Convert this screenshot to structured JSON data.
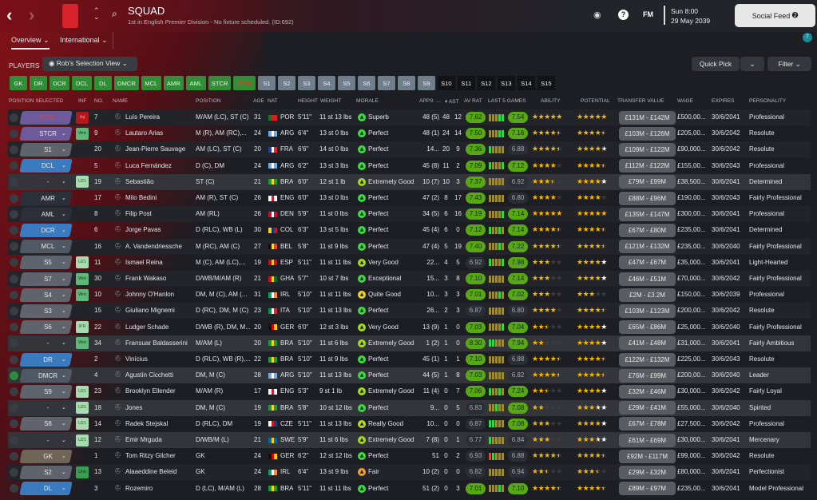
{
  "header": {
    "title": "SQUAD",
    "subtitle": "1st in English Premier Division - No fixture scheduled. (ID:692)",
    "day_time": "Sun 8:00",
    "date": "29 May 2039",
    "fm_label": "FM",
    "social_feed": "Social Feed",
    "notification_count": "7"
  },
  "tabs": [
    {
      "label": "Overview ⌄"
    },
    {
      "label": "International ⌄"
    }
  ],
  "players_label": "PLAYERS",
  "selection_view": "Rob's Selection View",
  "quick_pick": "Quick Pick",
  "filter": "Filter",
  "position_buttons": [
    {
      "label": "GK",
      "style": "g"
    },
    {
      "label": "DR",
      "style": "g"
    },
    {
      "label": "DCR",
      "style": "g"
    },
    {
      "label": "DCL",
      "style": "g"
    },
    {
      "label": "DL",
      "style": "g"
    },
    {
      "label": "DMCR",
      "style": "g"
    },
    {
      "label": "MCL",
      "style": "g"
    },
    {
      "label": "AMR",
      "style": "g"
    },
    {
      "label": "AML",
      "style": "g"
    },
    {
      "label": "STCR",
      "style": "g"
    },
    {
      "label": "STCL",
      "style": "g",
      "alert": true
    },
    {
      "label": "S1",
      "style": "s"
    },
    {
      "label": "S2",
      "style": "s"
    },
    {
      "label": "S3",
      "style": "s"
    },
    {
      "label": "S4",
      "style": "s"
    },
    {
      "label": "S5",
      "style": "s"
    },
    {
      "label": "S6",
      "style": "s"
    },
    {
      "label": "S7",
      "style": "s"
    },
    {
      "label": "S8",
      "style": "s"
    },
    {
      "label": "S9",
      "style": "s"
    },
    {
      "label": "S10",
      "style": "k"
    },
    {
      "label": "S11",
      "style": "k"
    },
    {
      "label": "S12",
      "style": "k"
    },
    {
      "label": "S13",
      "style": "k"
    },
    {
      "label": "S14",
      "style": "k"
    },
    {
      "label": "S15",
      "style": "k"
    }
  ],
  "columns": {
    "pos_sel": "POSITION SELECTED",
    "inf": "INF",
    "no": "NO.",
    "name": "NAME",
    "position": "POSITION",
    "age": "AGE",
    "nat": "NAT",
    "height": "HEIGHT",
    "weight": "WEIGHT",
    "morale": "MORALE",
    "apps": "APPS",
    "gls": "...",
    "ast": "▾ AST",
    "avrat": "AV RAT",
    "last5": "LAST 5 GAMES",
    "ability": "ABILITY",
    "potential": "POTENTIAL",
    "value": "TRANSFER VALUE",
    "wage": "WAGE",
    "expires": "EXPIRES",
    "personality": "PERSONALITY"
  },
  "colors": {
    "pill_purple": "#6c5a9c",
    "pill_gray": "#5f636b",
    "pill_blue": "#3a7bbf",
    "pill_dark": "#2b3038",
    "pill_mid": "#4a525c",
    "pill_gk": "#6e6557",
    "rating_good": "#58a814",
    "star": "#f5b800"
  },
  "players": [
    {
      "sel": "STCL",
      "pc": "purple",
      "inf": "Inj",
      "no": "7",
      "name": "Luís Pereira",
      "pos": "M/AM (LC), ST (C)",
      "age": "31",
      "nat": "POR",
      "h": "5'11\"",
      "w": "11 st 13 lbs",
      "morale": "Superb",
      "apps": "48 (5)",
      "gls": "48",
      "ast": "12",
      "av": "7.62",
      "last": "7.54",
      "l5": "ooogg",
      "ab": 5,
      "pot": 5,
      "potmax": 5,
      "tv": "£131M - £142M",
      "wage": "£500,00...",
      "exp": "30/6/2041",
      "pers": "Professional"
    },
    {
      "sel": "STCR",
      "pc": "purple",
      "inf": "Wnt",
      "no": "9",
      "name": "Lautaro Arias",
      "pos": "M (R), AM (RC),...",
      "age": "24",
      "nat": "ARG",
      "h": "6'4\"",
      "w": "13 st 0 lbs",
      "morale": "Perfect",
      "apps": "48 (1)",
      "gls": "24",
      "ast": "14",
      "av": "7.50",
      "last": "7.16",
      "l5": "ooogg",
      "ab": 4.5,
      "pot": 4.5,
      "potmax": 4.5,
      "tv": "£103M - £126M",
      "wage": "£205,00...",
      "exp": "30/6/2042",
      "pers": "Resolute"
    },
    {
      "sel": "S1",
      "pc": "gray",
      "inf": "",
      "no": "20",
      "name": "Jean-Pierre Sauvage",
      "pos": "AM (LC), ST (C)",
      "age": "20",
      "nat": "FRA",
      "h": "6'6\"",
      "w": "14 st 0 lbs",
      "morale": "Perfect",
      "apps": "14...",
      "gls": "20",
      "ast": "9",
      "av": "7.36",
      "last": "6.88",
      "l5": "goooo",
      "ab": 4.5,
      "pot": 4.5,
      "potmax": 5,
      "tv": "£109M - £122M",
      "wage": "£90,000...",
      "exp": "30/6/2042",
      "pers": "Resolute"
    },
    {
      "sel": "DCL",
      "pc": "blue",
      "inf": "",
      "no": "5",
      "name": "Luca Fernández",
      "pos": "D (C), DM",
      "age": "24",
      "nat": "ARG",
      "h": "6'2\"",
      "w": "13 st 3 lbs",
      "morale": "Perfect",
      "apps": "45 (8)",
      "gls": "11",
      "ast": "2",
      "av": "7.09",
      "last": "7.12",
      "l5": "gooog",
      "ab": 4,
      "pot": 4.5,
      "potmax": 4.5,
      "tv": "£112M - £122M",
      "wage": "£155,00...",
      "exp": "30/6/2043",
      "pers": "Professional"
    },
    {
      "sel": "-",
      "pc": "none",
      "inf": "U21",
      "no": "19",
      "name": "Sebastião",
      "pos": "ST (C)",
      "age": "21",
      "nat": "BRA",
      "h": "6'0\"",
      "w": "12 st 1 lb",
      "morale": "Extremely Good",
      "apps": "10 (7)",
      "gls": "10",
      "ast": "3",
      "av": "7.37",
      "last": "6.92",
      "l5": "ooooo",
      "ab": 3.5,
      "pot": 4,
      "potmax": 5,
      "tv": "£79M - £99M",
      "wage": "£38,500...",
      "exp": "30/6/2041",
      "pers": "Determined",
      "hl": true
    },
    {
      "sel": "AMR",
      "pc": "dark",
      "inf": "",
      "no": "17",
      "name": "Milo Bedini",
      "pos": "AM (R), ST (C)",
      "age": "26",
      "nat": "ENG",
      "h": "6'0\"",
      "w": "13 st 0 lbs",
      "morale": "Perfect",
      "apps": "47 (2)",
      "gls": "8",
      "ast": "17",
      "av": "7.43",
      "last": "6.80",
      "l5": "ooooo",
      "ab": 4,
      "pot": 4,
      "potmax": 4,
      "tv": "£88M - £96M",
      "wage": "£190,00...",
      "exp": "30/6/2043",
      "pers": "Fairly Professional"
    },
    {
      "sel": "AML",
      "pc": "dark",
      "inf": "",
      "no": "8",
      "name": "Filip Post",
      "pos": "AM (RL)",
      "age": "26",
      "nat": "DEN",
      "h": "5'9\"",
      "w": "11 st 0 lbs",
      "morale": "Perfect",
      "apps": "34 (5)",
      "gls": "6",
      "ast": "16",
      "av": "7.19",
      "last": "7.14",
      "l5": "oooog",
      "ab": 5,
      "pot": 5,
      "potmax": 5,
      "tv": "£135M - £147M",
      "wage": "£300,00...",
      "exp": "30/6/2041",
      "pers": "Professional"
    },
    {
      "sel": "DCR",
      "pc": "blue",
      "inf": "",
      "no": "6",
      "name": "Jorge Pavas",
      "pos": "D (RLC), WB (L)",
      "age": "30",
      "nat": "COL",
      "h": "6'3\"",
      "w": "13 st 5 lbs",
      "morale": "Perfect",
      "apps": "45 (4)",
      "gls": "6",
      "ast": "0",
      "av": "7.12",
      "last": "7.14",
      "l5": "googo",
      "ab": 4.5,
      "pot": 4.5,
      "potmax": 4.5,
      "tv": "£67M - £80M",
      "wage": "£235,00...",
      "exp": "30/6/2041",
      "pers": "Determined"
    },
    {
      "sel": "MCL",
      "pc": "mid",
      "inf": "",
      "no": "16",
      "name": "A. Vandendriessche",
      "pos": "M (RC), AM (C)",
      "age": "27",
      "nat": "BEL",
      "h": "5'8\"",
      "w": "11 st 9 lbs",
      "morale": "Perfect",
      "apps": "47 (4)",
      "gls": "5",
      "ast": "19",
      "av": "7.40",
      "last": "7.22",
      "l5": "ooogo",
      "ab": 4.5,
      "pot": 4.5,
      "potmax": 4.5,
      "tv": "£121M - £132M",
      "wage": "£235,00...",
      "exp": "30/6/2040",
      "pers": "Fairly Professional"
    },
    {
      "sel": "S5",
      "pc": "gray",
      "inf": "U21",
      "no": "11",
      "name": "Ismael Reina",
      "pos": "M (C), AM (LC),...",
      "age": "19",
      "nat": "ESP",
      "h": "5'11\"",
      "w": "11 st 11 lbs",
      "morale": "Very Good",
      "apps": "22...",
      "gls": "4",
      "ast": "5",
      "av": "6.92",
      "last": "7.98",
      "l5": "gooog",
      "ab": 3,
      "pot": 4,
      "potmax": 5,
      "tv": "£47M - £67M",
      "wage": "£35,000...",
      "exp": "30/6/2041",
      "pers": "Light-Hearted"
    },
    {
      "sel": "S7",
      "pc": "gray",
      "inf": "Wnt",
      "no": "30",
      "name": "Frank Wakaso",
      "pos": "D/WB/M/AM (R)",
      "age": "21",
      "nat": "GHA",
      "h": "5'7\"",
      "w": "10 st 7 lbs",
      "morale": "Exceptional",
      "apps": "15...",
      "gls": "3",
      "ast": "8",
      "av": "7.10",
      "last": "7.14",
      "l5": "ooooo",
      "ab": 3,
      "pot": 4,
      "potmax": 5,
      "tv": "£46M - £51M",
      "wage": "£70,000...",
      "exp": "30/6/2042",
      "pers": "Fairly Professional"
    },
    {
      "sel": "S4",
      "pc": "gray",
      "inf": "Wnt",
      "no": "10",
      "name": "Johnny O'Hanlon",
      "pos": "DM, M (C), AM (...",
      "age": "31",
      "nat": "IRL",
      "h": "5'10\"",
      "w": "11 st 11 lbs",
      "morale": "Quite Good",
      "apps": "10...",
      "gls": "3",
      "ast": "3",
      "av": "7.01",
      "last": "7.02",
      "l5": "ooogo",
      "ab": 3,
      "pot": 3,
      "potmax": 3,
      "tv": "£2M - £3.2M",
      "wage": "£150,00...",
      "exp": "30/6/2039",
      "pers": "Professional"
    },
    {
      "sel": "S3",
      "pc": "gray",
      "inf": "",
      "no": "15",
      "name": "Giuliano Mignemi",
      "pos": "D (RC), DM, M (C)",
      "age": "23",
      "nat": "ITA",
      "h": "5'10\"",
      "w": "11 st 13 lbs",
      "morale": "Perfect",
      "apps": "26...",
      "gls": "2",
      "ast": "3",
      "av": "6.87",
      "last": "6.80",
      "l5": "ooooo",
      "ab": 4,
      "pot": 4.5,
      "potmax": 4.5,
      "tv": "£103M - £123M",
      "wage": "£200,00...",
      "exp": "30/6/2042",
      "pers": "Resolute"
    },
    {
      "sel": "S6",
      "pc": "gray",
      "inf": "IPR",
      "no": "22",
      "name": "Ludger Schade",
      "pos": "D/WB (R), DM, M...",
      "age": "20",
      "nat": "GER",
      "h": "6'0\"",
      "w": "12 st 3 lbs",
      "morale": "Very Good",
      "apps": "13 (9)",
      "gls": "1",
      "ast": "0",
      "av": "7.03",
      "last": "7.04",
      "l5": "oooog",
      "ab": 2.5,
      "pot": 4,
      "potmax": 5,
      "tv": "£65M - £86M",
      "wage": "£25,000...",
      "exp": "30/6/2040",
      "pers": "Fairly Professional"
    },
    {
      "sel": "-",
      "pc": "none",
      "inf": "Wnt",
      "no": "34",
      "name": "Fransuar Baldasserini",
      "pos": "M/AM (L)",
      "age": "20",
      "nat": "BRA",
      "h": "5'10\"",
      "w": "11 st 6 lbs",
      "morale": "Extremely Good",
      "apps": "1 (2)",
      "gls": "1",
      "ast": "0",
      "av": "8.30",
      "last": "7.94",
      "l5": "ggooo",
      "ab": 2,
      "pot": 4,
      "potmax": 5,
      "tv": "£41M - £48M",
      "wage": "£31,000...",
      "exp": "30/6/2041",
      "pers": "Fairly Ambitious",
      "hl": true
    },
    {
      "sel": "DR",
      "pc": "blue",
      "inf": "",
      "no": "2",
      "name": "Vinícius",
      "pos": "D (RLC), WB (R),...",
      "age": "22",
      "nat": "BRA",
      "h": "5'10\"",
      "w": "11 st 9 lbs",
      "morale": "Perfect",
      "apps": "45 (1)",
      "gls": "1",
      "ast": "1",
      "av": "7.10",
      "last": "6.88",
      "l5": "ooooo",
      "ab": 4.5,
      "pot": 4.5,
      "potmax": 4.5,
      "tv": "£122M - £132M",
      "wage": "£225,00...",
      "exp": "30/6/2043",
      "pers": "Resolute"
    },
    {
      "sel": "DMCR",
      "pc": "mid",
      "inf": "",
      "no": "4",
      "name": "Agustín Cicchetti",
      "pos": "DM, M (C)",
      "age": "28",
      "nat": "ARG",
      "h": "5'10\"",
      "w": "11 st 13 lbs",
      "morale": "Perfect",
      "apps": "44 (5)",
      "gls": "1",
      "ast": "8",
      "av": "7.03",
      "last": "6.82",
      "l5": "ooooo",
      "ab": 4.5,
      "pot": 4.5,
      "potmax": 4.5,
      "tv": "£76M - £99M",
      "wage": "£200,00...",
      "exp": "30/6/2040",
      "pers": "Leader",
      "hl": true,
      "checked": true
    },
    {
      "sel": "S9",
      "pc": "gray",
      "inf": "U21",
      "no": "23",
      "name": "Brooklyn Ellender",
      "pos": "M/AM (R)",
      "age": "17",
      "nat": "ENG",
      "h": "5'3\"",
      "w": "9 st 1 lb",
      "morale": "Extremely Good",
      "apps": "11 (4)",
      "gls": "0",
      "ast": "7",
      "av": "7.06",
      "last": "7.24",
      "l5": "googo",
      "ab": 2.5,
      "pot": 4,
      "potmax": 5,
      "tv": "£32M - £46M",
      "wage": "£30,000...",
      "exp": "30/6/2042",
      "pers": "Fairly Loyal"
    },
    {
      "sel": "-",
      "pc": "none",
      "inf": "U21",
      "no": "18",
      "name": "Jones",
      "pos": "DM, M (C)",
      "age": "19",
      "nat": "BRA",
      "h": "5'8\"",
      "w": "10 st 12 lbs",
      "morale": "Perfect",
      "apps": "9...",
      "gls": "0",
      "ast": "5",
      "av": "6.83",
      "last": "7.08",
      "l5": "oogoo",
      "ab": 2,
      "pot": 3.5,
      "potmax": 4.5,
      "tv": "£29M - £41M",
      "wage": "£55,000...",
      "exp": "30/6/2040",
      "pers": "Spirited",
      "hl": true
    },
    {
      "sel": "S8",
      "pc": "gray",
      "inf": "U21",
      "no": "14",
      "name": "Radek Stejskal",
      "pos": "D (RLC), DM",
      "age": "19",
      "nat": "CZE",
      "h": "5'11\"",
      "w": "11 st 13 lbs",
      "morale": "Really Good",
      "apps": "10...",
      "gls": "0",
      "ast": "0",
      "av": "6.87",
      "last": "7.08",
      "l5": "ggooo",
      "ab": 3,
      "pot": 4,
      "potmax": 5,
      "tv": "£67M - £78M",
      "wage": "£27,500...",
      "exp": "30/6/2042",
      "pers": "Professional"
    },
    {
      "sel": "-",
      "pc": "none",
      "inf": "U21",
      "no": "12",
      "name": "Emir Mrguda",
      "pos": "D/WB/M (L)",
      "age": "21",
      "nat": "SWE",
      "h": "5'9\"",
      "w": "11 st 6 lbs",
      "morale": "Extremely Good",
      "apps": "7 (8)",
      "gls": "0",
      "ast": "1",
      "av": "6.77",
      "last": "6.84",
      "l5": "goooo",
      "ab": 3,
      "pot": 3.5,
      "potmax": 4.5,
      "tv": "£61M - £69M",
      "wage": "£30,000...",
      "exp": "30/6/2041",
      "pers": "Mercenary",
      "hl": true
    },
    {
      "sel": "GK",
      "pc": "gk",
      "inf": "",
      "no": "1",
      "name": "Tom Ritzy Gilcher",
      "pos": "GK",
      "age": "24",
      "nat": "GER",
      "h": "6'2\"",
      "w": "12 st 12 lbs",
      "morale": "Perfect",
      "apps": "51",
      "gls": "0",
      "ast": "2",
      "av": "6.93",
      "last": "6.88",
      "l5": "rgooo",
      "ab": 4.5,
      "pot": 4.5,
      "potmax": 4.5,
      "tv": "£92M - £117M",
      "wage": "£99,000...",
      "exp": "30/6/2042",
      "pers": "Resolute"
    },
    {
      "sel": "S2",
      "pc": "gray",
      "inf": "Unh",
      "no": "13",
      "name": "Alaaeddine Beleid",
      "pos": "GK",
      "age": "24",
      "nat": "IRL",
      "h": "6'4\"",
      "w": "13 st 9 lbs",
      "morale": "Fair",
      "apps": "10 (2)",
      "gls": "0",
      "ast": "0",
      "av": "6.82",
      "last": "6.94",
      "l5": "ooooo",
      "ab": 2.5,
      "pot": 3.5,
      "potmax": 3.5,
      "tv": "£29M - £32M",
      "wage": "£80,000...",
      "exp": "30/6/2041",
      "pers": "Perfectionist"
    },
    {
      "sel": "DL",
      "pc": "blue",
      "inf": "",
      "no": "3",
      "name": "Rozemiro",
      "pos": "D (LC), M/AM (L)",
      "age": "28",
      "nat": "BRA",
      "h": "5'11\"",
      "w": "11 st 11 lbs",
      "morale": "Perfect",
      "apps": "51 (2)",
      "gls": "0",
      "ast": "3",
      "av": "7.01",
      "last": "7.10",
      "l5": "ooogo",
      "ab": 4.5,
      "pot": 4.5,
      "potmax": 4.5,
      "tv": "£89M - £97M",
      "wage": "£235,00...",
      "exp": "30/6/2041",
      "pers": "Model Professional"
    }
  ]
}
